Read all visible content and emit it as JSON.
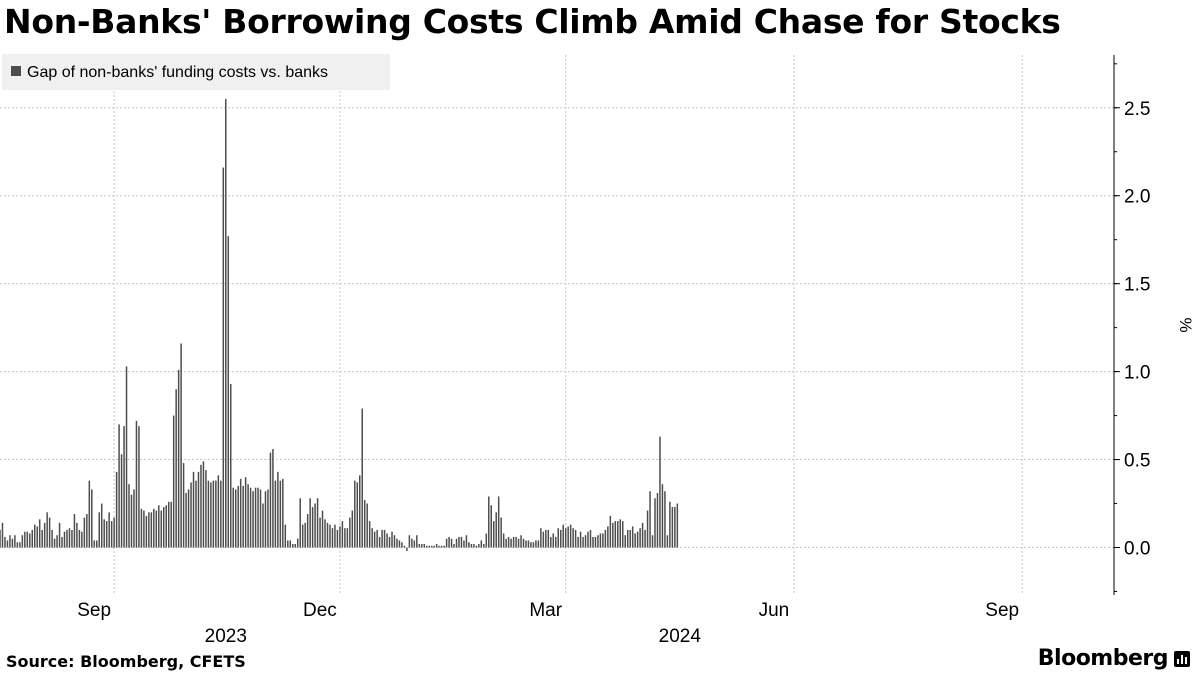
{
  "title": "Non-Banks' Borrowing Costs Climb Amid Chase for Stocks",
  "source": "Source: Bloomberg, CFETS",
  "brand": "Bloomberg",
  "brand_icon": "bloomberg-terminal-icon",
  "colors": {
    "bar": "#4d4d4d",
    "grid": "#c8c8c8",
    "legend_bg": "#f0f0f0"
  },
  "chart_data": {
    "type": "bar",
    "legend": [
      "Gap of non-banks' funding costs vs. banks"
    ],
    "legend_position": "top-left",
    "ylabel": "%",
    "y_axis_side": "right",
    "ylim": [
      -0.27,
      2.8
    ],
    "yticks": [
      0.0,
      0.5,
      1.0,
      1.5,
      2.0,
      2.5
    ],
    "ytick_labels": [
      "0.0",
      "0.5",
      "1.0",
      "1.5",
      "2.0",
      "2.5"
    ],
    "xticks": [
      "2023-09-01",
      "2023-12-01",
      "2024-03-01",
      "2024-06-01",
      "2024-09-01"
    ],
    "xtick_labels": [
      "Sep",
      "Dec",
      "Mar",
      "Jun",
      "Sep"
    ],
    "year_labels": [
      {
        "label": "2023",
        "date": "2023-10-16"
      },
      {
        "label": "2024",
        "date": "2024-04-16"
      }
    ],
    "grid": true,
    "date_range": [
      "2023-07-17",
      "2024-10-08"
    ],
    "bar_interval_days": 1,
    "series": [
      {
        "name": "Gap of non-banks' funding costs vs. banks",
        "start_date": "2023-07-17",
        "values": [
          0.1,
          0.14,
          0.06,
          0.04,
          0.07,
          0.05,
          0.07,
          0.03,
          0.03,
          0.07,
          0.09,
          0.09,
          0.08,
          0.1,
          0.13,
          0.12,
          0.16,
          0.1,
          0.14,
          0.2,
          0.17,
          0.1,
          0.05,
          0.07,
          0.14,
          0.06,
          0.09,
          0.1,
          0.11,
          0.1,
          0.19,
          0.14,
          0.1,
          0.09,
          0.17,
          0.19,
          0.38,
          0.33,
          0.04,
          0.04,
          0.2,
          0.25,
          0.16,
          0.15,
          0.2,
          0.15,
          0.17,
          0.43,
          0.7,
          0.53,
          0.69,
          1.03,
          0.36,
          0.3,
          0.33,
          0.72,
          0.69,
          0.22,
          0.21,
          0.18,
          0.2,
          0.2,
          0.22,
          0.21,
          0.24,
          0.21,
          0.23,
          0.24,
          0.26,
          0.26,
          0.75,
          0.9,
          1.01,
          1.16,
          0.48,
          0.31,
          0.33,
          0.37,
          0.43,
          0.38,
          0.43,
          0.47,
          0.49,
          0.44,
          0.38,
          0.37,
          0.38,
          0.38,
          0.41,
          0.38,
          2.16,
          2.55,
          1.77,
          0.93,
          0.34,
          0.33,
          0.35,
          0.39,
          0.35,
          0.4,
          0.36,
          0.34,
          0.32,
          0.34,
          0.34,
          0.33,
          0.25,
          0.32,
          0.33,
          0.54,
          0.56,
          0.38,
          0.43,
          0.38,
          0.39,
          0.13,
          0.04,
          0.04,
          0.02,
          0.02,
          0.05,
          0.28,
          0.13,
          0.14,
          0.19,
          0.28,
          0.23,
          0.25,
          0.28,
          0.17,
          0.21,
          0.16,
          0.14,
          0.13,
          0.11,
          0.13,
          0.1,
          0.12,
          0.15,
          0.11,
          0.11,
          0.17,
          0.21,
          0.38,
          0.37,
          0.41,
          0.79,
          0.27,
          0.25,
          0.15,
          0.11,
          0.09,
          0.1,
          0.06,
          0.1,
          0.1,
          0.08,
          0.06,
          0.09,
          0.07,
          0.05,
          0.04,
          0.03,
          0.01,
          -0.02,
          0.07,
          0.05,
          0.04,
          0.07,
          0.02,
          0.02,
          0.02,
          0.01,
          0.01,
          0.01,
          0.01,
          0.02,
          0.01,
          0.01,
          0.01,
          0.05,
          0.06,
          0.05,
          0.02,
          0.05,
          0.06,
          0.06,
          0.04,
          0.07,
          0.03,
          0.02,
          0.02,
          0.01,
          0.02,
          0.04,
          0.02,
          0.08,
          0.29,
          0.24,
          0.15,
          0.2,
          0.29,
          0.17,
          0.08,
          0.05,
          0.06,
          0.05,
          0.06,
          0.06,
          0.05,
          0.07,
          0.05,
          0.04,
          0.04,
          0.03,
          0.03,
          0.04,
          0.04,
          0.11,
          0.09,
          0.1,
          0.1,
          0.06,
          0.08,
          0.06,
          0.11,
          0.1,
          0.13,
          0.11,
          0.12,
          0.13,
          0.11,
          0.1,
          0.06,
          0.09,
          0.06,
          0.07,
          0.09,
          0.1,
          0.06,
          0.06,
          0.07,
          0.08,
          0.08,
          0.1,
          0.12,
          0.18,
          0.14,
          0.15,
          0.15,
          0.16,
          0.15,
          0.07,
          0.1,
          0.1,
          0.12,
          0.08,
          0.09,
          0.11,
          0.14,
          0.1,
          0.21,
          0.32,
          0.07,
          0.28,
          0.31,
          0.63,
          0.36,
          0.32,
          0.07,
          0.26,
          0.23,
          0.23,
          0.25
        ]
      }
    ]
  }
}
